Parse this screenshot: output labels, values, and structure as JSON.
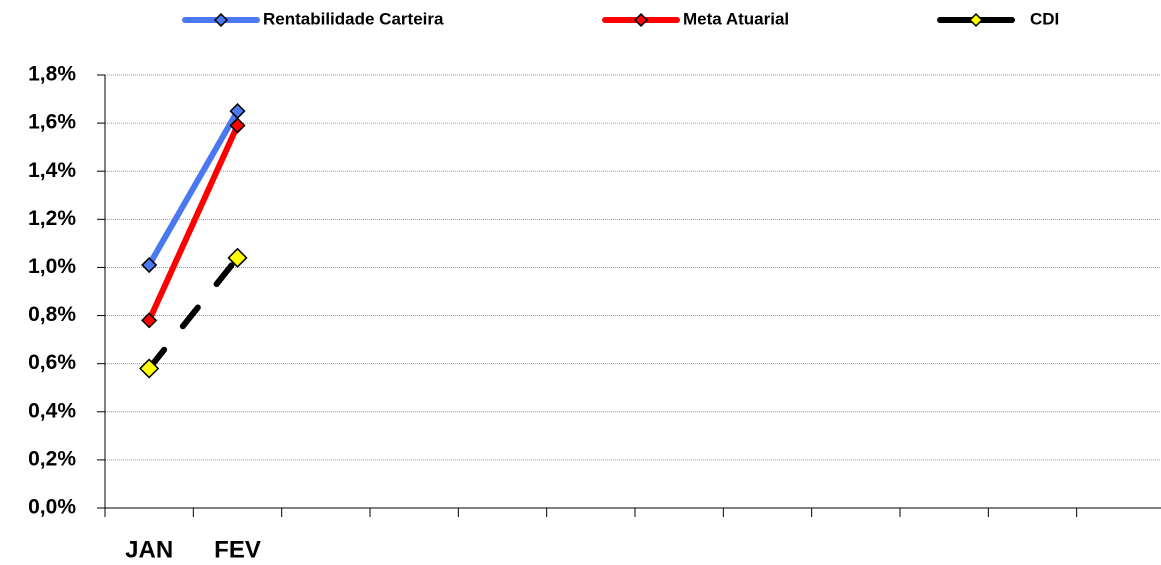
{
  "chart_data": {
    "type": "line",
    "categories": [
      "JAN",
      "FEV",
      null,
      null,
      null,
      null,
      null,
      null,
      null,
      null,
      null,
      null
    ],
    "series": [
      {
        "name": "Rentabilidade Carteira",
        "color": "#4a78f0",
        "marker_color": "#4a78f0",
        "values": [
          1.01,
          1.65,
          null,
          null,
          null,
          null,
          null,
          null,
          null,
          null,
          null,
          null
        ]
      },
      {
        "name": "Meta Atuarial",
        "color": "#ff0000",
        "marker_color": "#ff0000",
        "values": [
          0.78,
          1.59,
          null,
          null,
          null,
          null,
          null,
          null,
          null,
          null,
          null,
          null
        ]
      },
      {
        "name": "CDI",
        "color": "#000000",
        "marker_color": "#ffff00",
        "dashed": true,
        "values": [
          0.58,
          1.04,
          null,
          null,
          null,
          null,
          null,
          null,
          null,
          null,
          null,
          null
        ]
      }
    ],
    "ylim": [
      0,
      1.8
    ],
    "yticks": [
      {
        "value": 0,
        "label": "0,0%"
      },
      {
        "value": 0.2,
        "label": "0,2%"
      },
      {
        "value": 0.4,
        "label": "0,4%"
      },
      {
        "value": 0.6,
        "label": "0,6%"
      },
      {
        "value": 0.8,
        "label": "0,8%"
      },
      {
        "value": 1.0,
        "label": "1,0%"
      },
      {
        "value": 1.2,
        "label": "1,2%"
      },
      {
        "value": 1.4,
        "label": "1,4%"
      },
      {
        "value": 1.6,
        "label": "1,6%"
      },
      {
        "value": 1.8,
        "label": "1,8%"
      }
    ],
    "grid": true,
    "legend": "top"
  }
}
